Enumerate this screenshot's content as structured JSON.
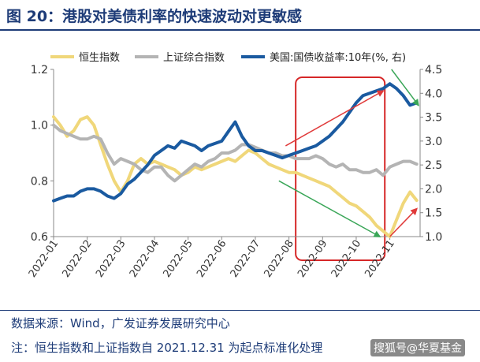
{
  "title": "图 20：港股对美债利率的快速波动对更敏感",
  "source": "数据来源：Wind，广发证券发展研究中心",
  "note": "注：恒生指数和上证指数自 2021.12.31 为起点标准化处理",
  "watermark": "搜狐号@华夏基金",
  "colors": {
    "hsi": "#f0d77a",
    "sse": "#b4b4b4",
    "us10y": "#1a5aa0",
    "highlight": "#d62728",
    "up_arrow": "#e03a3a",
    "down_arrow": "#3aa658",
    "title": "#1e3c78"
  },
  "chart_data": {
    "type": "line",
    "legend": [
      "恒生指数",
      "上证综合指数",
      "美国:国债收益率:10年(%, 右)"
    ],
    "x_ticks": [
      "2022-01",
      "2022-02",
      "2022-03",
      "2022-04",
      "2022-05",
      "2022-06",
      "2022-07",
      "2022-08",
      "2022-09",
      "2022-10",
      "2022-11"
    ],
    "y_left": {
      "ticks": [
        "0.6",
        "0.8",
        "1.0",
        "1.2"
      ],
      "min": 0.6,
      "max": 1.2
    },
    "y_right": {
      "ticks": [
        "1.0",
        "1.5",
        "2.0",
        "2.5",
        "3.0",
        "3.5",
        "4.0",
        "4.5"
      ],
      "min": 1.0,
      "max": 4.5
    },
    "x_range": [
      0,
      10.9
    ],
    "series": [
      {
        "name": "恒生指数",
        "axis": "left",
        "color": "#f0d77a",
        "x": [
          0,
          0.2,
          0.4,
          0.6,
          0.8,
          1.0,
          1.2,
          1.4,
          1.6,
          1.8,
          2.0,
          2.2,
          2.4,
          2.6,
          2.8,
          3.0,
          3.2,
          3.4,
          3.6,
          3.8,
          4.0,
          4.2,
          4.4,
          4.6,
          4.8,
          5.0,
          5.2,
          5.4,
          5.6,
          5.8,
          6.0,
          6.2,
          6.4,
          6.6,
          6.8,
          7.0,
          7.2,
          7.4,
          7.6,
          7.8,
          8.0,
          8.2,
          8.4,
          8.6,
          8.8,
          9.0,
          9.2,
          9.4,
          9.6,
          9.8,
          10.0,
          10.2,
          10.4,
          10.6,
          10.8
        ],
        "values": [
          1.03,
          1.0,
          0.96,
          0.98,
          1.02,
          1.03,
          1.0,
          0.93,
          0.86,
          0.8,
          0.76,
          0.8,
          0.86,
          0.88,
          0.86,
          0.87,
          0.86,
          0.85,
          0.84,
          0.82,
          0.83,
          0.85,
          0.84,
          0.85,
          0.86,
          0.87,
          0.88,
          0.87,
          0.89,
          0.91,
          0.9,
          0.88,
          0.86,
          0.85,
          0.84,
          0.83,
          0.83,
          0.82,
          0.81,
          0.8,
          0.79,
          0.78,
          0.76,
          0.74,
          0.72,
          0.71,
          0.69,
          0.67,
          0.64,
          0.62,
          0.6,
          0.66,
          0.72,
          0.76,
          0.73
        ]
      },
      {
        "name": "上证综合指数",
        "axis": "left",
        "color": "#b4b4b4",
        "x": [
          0,
          0.2,
          0.4,
          0.6,
          0.8,
          1.0,
          1.2,
          1.4,
          1.6,
          1.8,
          2.0,
          2.2,
          2.4,
          2.6,
          2.8,
          3.0,
          3.2,
          3.4,
          3.6,
          3.8,
          4.0,
          4.2,
          4.4,
          4.6,
          4.8,
          5.0,
          5.2,
          5.4,
          5.6,
          5.8,
          6.0,
          6.2,
          6.4,
          6.6,
          6.8,
          7.0,
          7.2,
          7.4,
          7.6,
          7.8,
          8.0,
          8.2,
          8.4,
          8.6,
          8.8,
          9.0,
          9.2,
          9.4,
          9.6,
          9.8,
          10.0,
          10.2,
          10.4,
          10.6,
          10.8
        ],
        "values": [
          1.0,
          0.98,
          0.97,
          0.96,
          0.95,
          0.95,
          0.96,
          0.95,
          0.9,
          0.86,
          0.88,
          0.87,
          0.86,
          0.84,
          0.83,
          0.85,
          0.85,
          0.82,
          0.8,
          0.82,
          0.84,
          0.86,
          0.85,
          0.87,
          0.88,
          0.9,
          0.9,
          0.91,
          0.93,
          0.93,
          0.92,
          0.91,
          0.9,
          0.9,
          0.89,
          0.89,
          0.88,
          0.88,
          0.88,
          0.89,
          0.88,
          0.86,
          0.85,
          0.86,
          0.84,
          0.84,
          0.83,
          0.83,
          0.84,
          0.82,
          0.85,
          0.86,
          0.87,
          0.87,
          0.86
        ]
      },
      {
        "name": "美国:国债收益率:10年(%, 右)",
        "axis": "right",
        "color": "#1a5aa0",
        "x": [
          0,
          0.2,
          0.4,
          0.6,
          0.8,
          1.0,
          1.2,
          1.4,
          1.6,
          1.8,
          2.0,
          2.2,
          2.4,
          2.6,
          2.8,
          3.0,
          3.2,
          3.4,
          3.6,
          3.8,
          4.0,
          4.2,
          4.4,
          4.6,
          4.8,
          5.0,
          5.2,
          5.4,
          5.6,
          5.8,
          6.0,
          6.2,
          6.4,
          6.6,
          6.8,
          7.0,
          7.2,
          7.4,
          7.6,
          7.8,
          8.0,
          8.2,
          8.4,
          8.6,
          8.8,
          9.0,
          9.2,
          9.4,
          9.6,
          9.8,
          10.0,
          10.2,
          10.4,
          10.6,
          10.8
        ],
        "values": [
          1.75,
          1.8,
          1.85,
          1.85,
          1.95,
          2.0,
          2.0,
          1.95,
          1.85,
          1.8,
          1.9,
          2.1,
          2.2,
          2.35,
          2.5,
          2.7,
          2.8,
          2.9,
          2.85,
          3.0,
          2.95,
          2.9,
          2.8,
          2.9,
          2.95,
          3.0,
          3.2,
          3.4,
          3.1,
          2.9,
          2.8,
          2.8,
          2.75,
          2.7,
          2.65,
          2.7,
          2.75,
          2.8,
          2.85,
          2.9,
          3.0,
          3.1,
          3.25,
          3.4,
          3.6,
          3.8,
          3.95,
          4.0,
          4.05,
          4.1,
          4.2,
          4.1,
          3.95,
          3.75,
          3.8
        ]
      }
    ],
    "annotations": [
      "highlight-box 2022-08 to 2022-10",
      "red-up-arrows",
      "green-down-arrows"
    ]
  }
}
